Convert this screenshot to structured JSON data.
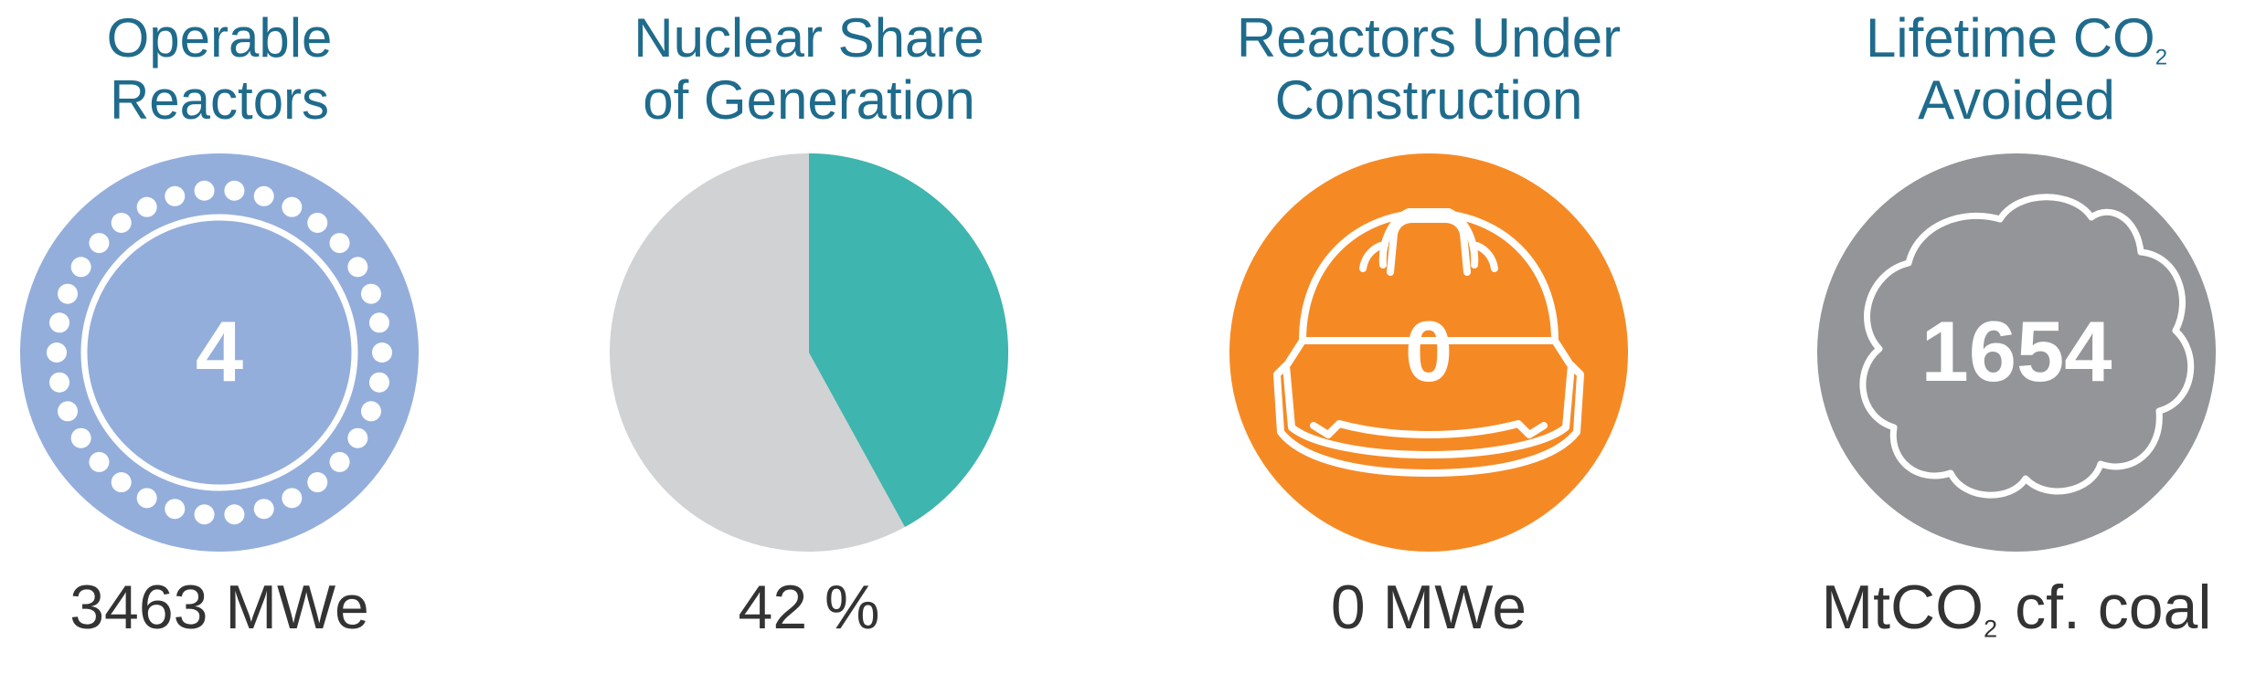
{
  "colors": {
    "title": "#1f6b8c",
    "reactors": "#94aedb",
    "nuclear_share": "#3eb5ae",
    "other_share": "#d1d2d4",
    "construction": "#f58a25",
    "co2": "#939598",
    "caption": "#333333"
  },
  "panels": {
    "reactors": {
      "title_line1": "Operable",
      "title_line2": "Reactors",
      "value": "4",
      "caption": "3463 MWe",
      "icon": "reactor-core-icon"
    },
    "share": {
      "title_line1": "Nuclear Share",
      "title_line2": "of Generation",
      "caption": "42 %",
      "icon": "pie-icon"
    },
    "construction": {
      "title_line1": "Reactors Under",
      "title_line2": "Construction",
      "value": "0",
      "caption": "0 MWe",
      "icon": "hard-hat-icon"
    },
    "co2": {
      "title_line1": "Lifetime CO",
      "title_line1_sub": "2",
      "title_line2": "Avoided",
      "value": "1654",
      "caption_prefix": "MtCO",
      "caption_sub": "2",
      "caption_suffix": " cf. coal",
      "icon": "cloud-icon"
    }
  },
  "chart_data": {
    "type": "pie",
    "categories": [
      "Nuclear",
      "Other"
    ],
    "values": [
      42,
      58
    ]
  }
}
